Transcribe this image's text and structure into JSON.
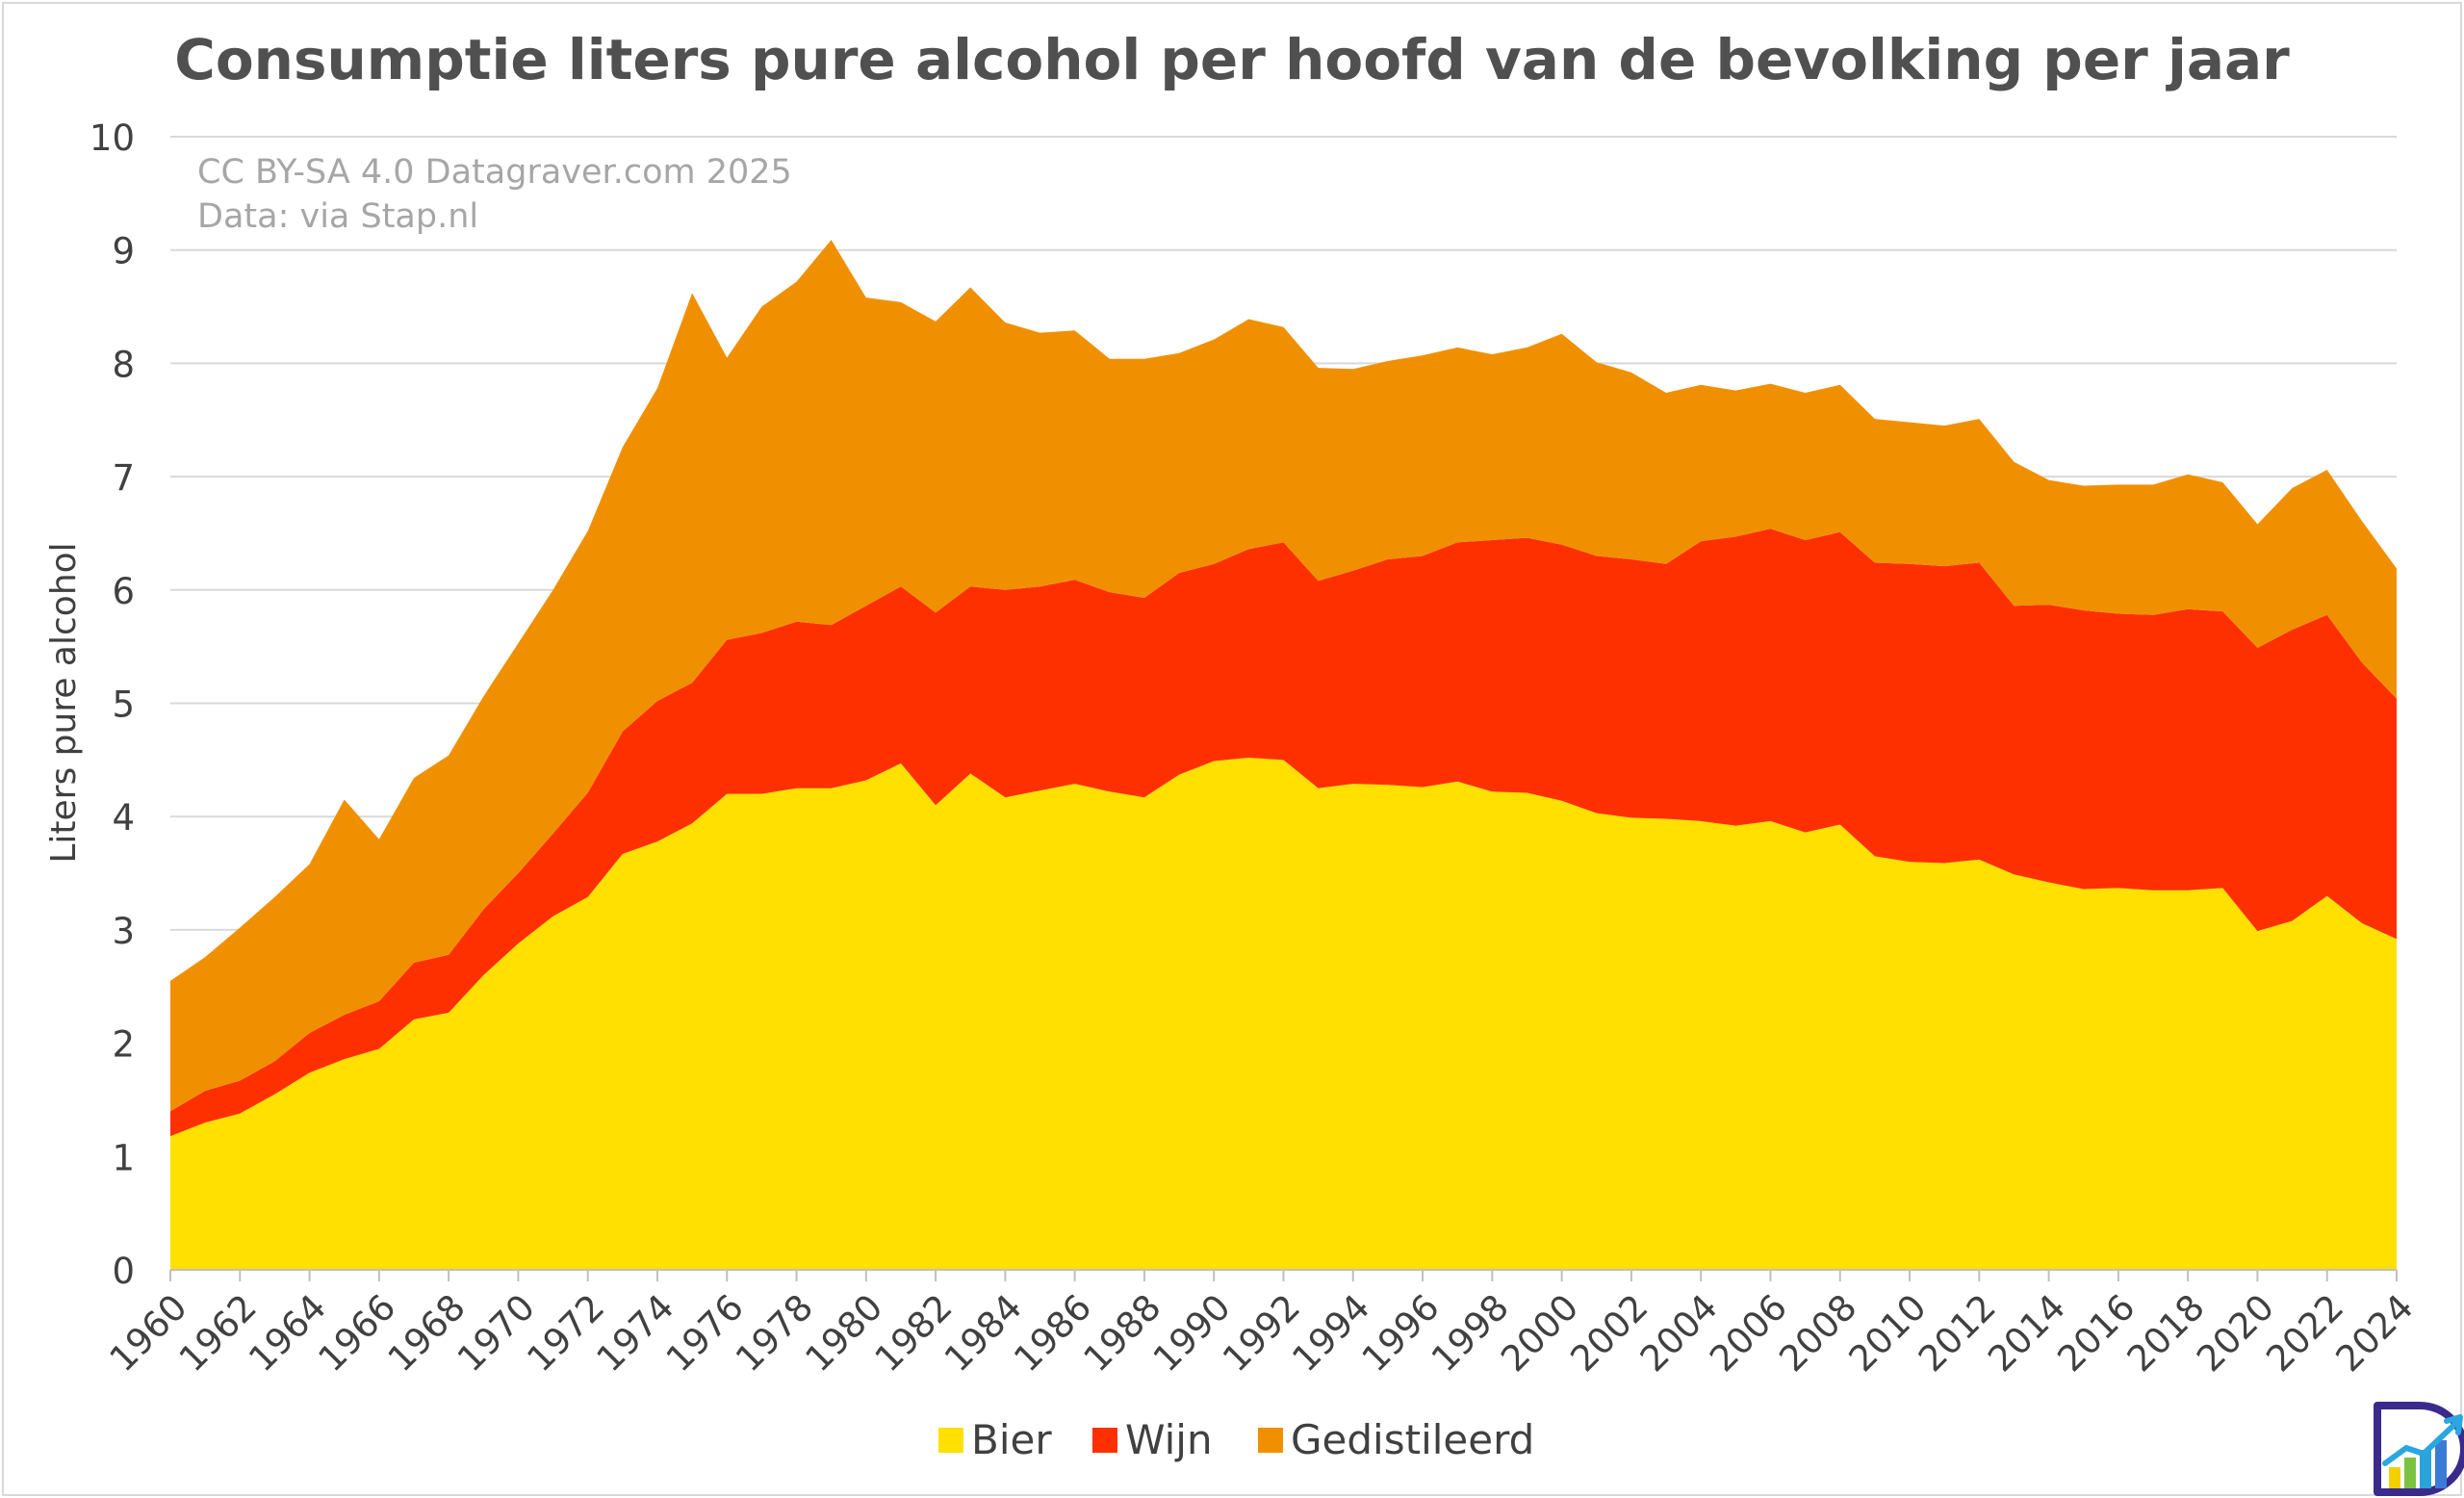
{
  "chart_data": {
    "type": "area",
    "stacked": true,
    "title": "Consumptie liters pure alcohol per hoofd van de bevolking per jaar",
    "credits": [
      "CC BY-SA 4.0 Datagraver.com 2025",
      "Data:  via Stap.nl"
    ],
    "ylabel": "Liters pure alcohol",
    "xlabel": "",
    "ylim": [
      0,
      10
    ],
    "yticks": [
      "0",
      "1",
      "2",
      "3",
      "4",
      "5",
      "6",
      "7",
      "8",
      "9",
      "10"
    ],
    "xticks": [
      "1960",
      "1962",
      "1964",
      "1966",
      "1968",
      "1970",
      "1972",
      "1974",
      "1976",
      "1978",
      "1980",
      "1982",
      "1984",
      "1986",
      "1988",
      "1990",
      "1992",
      "1994",
      "1996",
      "1998",
      "2000",
      "2002",
      "2004",
      "2006",
      "2008",
      "2010",
      "2012",
      "2014",
      "2016",
      "2018",
      "2020",
      "2022",
      "2024"
    ],
    "grid": true,
    "legend_position": "bottom",
    "x": [
      1960,
      1961,
      1962,
      1963,
      1964,
      1965,
      1966,
      1967,
      1968,
      1969,
      1970,
      1971,
      1972,
      1973,
      1974,
      1975,
      1976,
      1977,
      1978,
      1979,
      1980,
      1981,
      1982,
      1983,
      1984,
      1985,
      1986,
      1987,
      1988,
      1989,
      1990,
      1991,
      1992,
      1993,
      1994,
      1995,
      1996,
      1997,
      1998,
      1999,
      2000,
      2001,
      2002,
      2003,
      2004,
      2005,
      2006,
      2007,
      2008,
      2009,
      2010,
      2011,
      2012,
      2013,
      2014,
      2015,
      2016,
      2017,
      2018,
      2019,
      2020,
      2021,
      2022,
      2023,
      2024
    ],
    "series": [
      {
        "name": "Bier",
        "color": "#ffe000",
        "values": [
          1.18,
          1.3,
          1.38,
          1.55,
          1.74,
          1.86,
          1.95,
          2.21,
          2.27,
          2.6,
          2.88,
          3.12,
          3.29,
          3.67,
          3.78,
          3.94,
          4.2,
          4.2,
          4.25,
          4.25,
          4.32,
          4.47,
          4.1,
          4.38,
          4.17,
          4.23,
          4.29,
          4.22,
          4.17,
          4.37,
          4.49,
          4.52,
          4.5,
          4.25,
          4.29,
          4.28,
          4.26,
          4.31,
          4.22,
          4.21,
          4.14,
          4.03,
          3.99,
          3.98,
          3.96,
          3.92,
          3.96,
          3.86,
          3.93,
          3.65,
          3.6,
          3.59,
          3.62,
          3.49,
          3.42,
          3.36,
          3.37,
          3.35,
          3.35,
          3.37,
          2.99,
          3.08,
          3.3,
          3.06,
          2.92
        ]
      },
      {
        "name": "Wijn",
        "color": "#ff3000",
        "values": [
          0.22,
          0.28,
          0.29,
          0.29,
          0.35,
          0.39,
          0.42,
          0.5,
          0.51,
          0.58,
          0.62,
          0.73,
          0.92,
          1.08,
          1.24,
          1.24,
          1.36,
          1.42,
          1.47,
          1.44,
          1.54,
          1.56,
          1.7,
          1.65,
          1.83,
          1.8,
          1.8,
          1.76,
          1.76,
          1.78,
          1.74,
          1.84,
          1.92,
          1.83,
          1.88,
          1.99,
          2.04,
          2.11,
          2.22,
          2.25,
          2.26,
          2.27,
          2.28,
          2.25,
          2.47,
          2.55,
          2.58,
          2.58,
          2.58,
          2.59,
          2.63,
          2.62,
          2.62,
          2.37,
          2.45,
          2.46,
          2.42,
          2.43,
          2.48,
          2.44,
          2.5,
          2.57,
          2.48,
          2.3,
          2.12
        ]
      },
      {
        "name": "Gedistileerd",
        "color": "#f09000",
        "values": [
          1.15,
          1.18,
          1.35,
          1.45,
          1.49,
          1.9,
          1.43,
          1.63,
          1.76,
          1.88,
          2.03,
          2.15,
          2.31,
          2.51,
          2.76,
          3.44,
          2.49,
          2.88,
          3.0,
          3.4,
          2.72,
          2.51,
          2.57,
          2.64,
          2.36,
          2.24,
          2.2,
          2.06,
          2.11,
          1.94,
          1.98,
          2.03,
          1.9,
          1.88,
          1.78,
          1.75,
          1.77,
          1.72,
          1.64,
          1.68,
          1.86,
          1.71,
          1.65,
          1.51,
          1.38,
          1.29,
          1.28,
          1.3,
          1.3,
          1.27,
          1.25,
          1.24,
          1.27,
          1.27,
          1.1,
          1.1,
          1.14,
          1.15,
          1.19,
          1.14,
          1.09,
          1.25,
          1.28,
          1.25,
          1.15
        ]
      }
    ]
  }
}
